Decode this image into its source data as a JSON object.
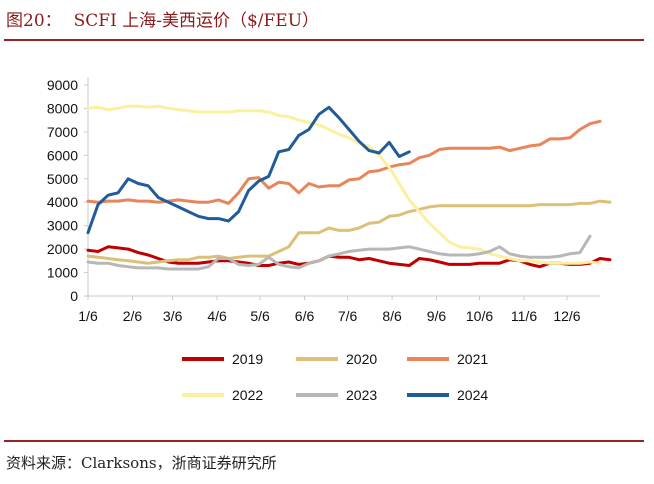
{
  "figure": {
    "label": "图20：",
    "title": "SCFI 上海-美西运价（$/FEU）",
    "source": "资料来源：Clarksons，浙商证券研究所"
  },
  "colors": {
    "title": "#8b1a1a",
    "rule": "#9b2222",
    "axis": "#c8c8c8"
  },
  "chart_data": {
    "type": "line",
    "title": "SCFI 上海-美西运价（$/FEU）",
    "xlabel": "",
    "ylabel": "",
    "ylim": [
      0,
      9000
    ],
    "yticks": [
      0,
      1000,
      2000,
      3000,
      4000,
      5000,
      6000,
      7000,
      8000,
      9000
    ],
    "xlim": [
      0,
      51
    ],
    "x_ticks": [
      {
        "label": "1/6",
        "x": 0
      },
      {
        "label": "2/6",
        "x": 4.43
      },
      {
        "label": "3/6",
        "x": 8.43
      },
      {
        "label": "4/6",
        "x": 12.86
      },
      {
        "label": "5/6",
        "x": 17.14
      },
      {
        "label": "6/6",
        "x": 21.57
      },
      {
        "label": "7/6",
        "x": 25.86
      },
      {
        "label": "8/6",
        "x": 30.29
      },
      {
        "label": "9/6",
        "x": 34.71
      },
      {
        "label": "10/6",
        "x": 39
      },
      {
        "label": "11/6",
        "x": 43.43
      },
      {
        "label": "12/6",
        "x": 47.71
      }
    ],
    "grid": false,
    "legend_position": "bottom",
    "series": [
      {
        "name": "2019",
        "color": "#c00000",
        "x_start": 0,
        "x_step": 1,
        "values": [
          1950,
          1900,
          2100,
          2050,
          2000,
          1850,
          1750,
          1600,
          1450,
          1400,
          1400,
          1400,
          1450,
          1500,
          1500,
          1450,
          1400,
          1300,
          1300,
          1400,
          1450,
          1350,
          1400,
          1500,
          1700,
          1650,
          1650,
          1550,
          1600,
          1500,
          1400,
          1350,
          1300,
          1600,
          1550,
          1450,
          1350,
          1350,
          1350,
          1400,
          1400,
          1400,
          1550,
          1500,
          1350,
          1250,
          1400,
          1400,
          1350,
          1350,
          1400,
          1600,
          1550
        ]
      },
      {
        "name": "2020",
        "color": "#dcc078",
        "x_start": 0,
        "x_step": 1,
        "values": [
          1700,
          1650,
          1600,
          1550,
          1500,
          1450,
          1400,
          1450,
          1500,
          1550,
          1550,
          1650,
          1650,
          1700,
          1600,
          1650,
          1700,
          1700,
          1700,
          1900,
          2100,
          2700,
          2700,
          2700,
          2900,
          2800,
          2800,
          2900,
          3100,
          3150,
          3400,
          3450,
          3600,
          3700,
          3800,
          3850,
          3850,
          3850,
          3850,
          3850,
          3850,
          3850,
          3850,
          3850,
          3850,
          3900,
          3900,
          3900,
          3900,
          3950,
          3950,
          4050,
          4000
        ]
      },
      {
        "name": "2021",
        "color": "#e8855a",
        "x_start": 0,
        "x_step": 1,
        "values": [
          4050,
          4000,
          4050,
          4050,
          4100,
          4050,
          4050,
          4000,
          4050,
          4100,
          4050,
          4000,
          4000,
          4100,
          3950,
          4400,
          5000,
          5050,
          4600,
          4850,
          4800,
          4400,
          4800,
          4650,
          4700,
          4700,
          4950,
          5000,
          5300,
          5350,
          5500,
          5600,
          5650,
          5900,
          6000,
          6250,
          6300,
          6300,
          6300,
          6300,
          6300,
          6350,
          6200,
          6300,
          6400,
          6450,
          6700,
          6700,
          6750,
          7100,
          7350,
          7450
        ]
      },
      {
        "name": "2022",
        "color": "#fbf0a0",
        "x_start": 0,
        "x_step": 1,
        "values": [
          8000,
          8050,
          7950,
          8000,
          8100,
          8100,
          8050,
          8100,
          8000,
          7950,
          7900,
          7850,
          7850,
          7850,
          7850,
          7900,
          7900,
          7900,
          7850,
          7700,
          7650,
          7500,
          7400,
          7300,
          7100,
          6900,
          6750,
          6500,
          6400,
          6000,
          5500,
          4800,
          4100,
          3600,
          3100,
          2700,
          2300,
          2100,
          2050,
          2000,
          1800,
          1700,
          1600,
          1500,
          1500,
          1450,
          1400,
          1400,
          1400,
          1400,
          1450,
          1400
        ]
      },
      {
        "name": "2023",
        "color": "#b7b7b7",
        "x_start": 0,
        "x_step": 1,
        "values": [
          1450,
          1400,
          1400,
          1300,
          1250,
          1200,
          1200,
          1200,
          1150,
          1150,
          1150,
          1150,
          1250,
          1600,
          1600,
          1350,
          1300,
          1350,
          1650,
          1350,
          1250,
          1200,
          1400,
          1500,
          1700,
          1800,
          1900,
          1950,
          2000,
          2000,
          2000,
          2050,
          2100,
          2000,
          1900,
          1800,
          1750,
          1750,
          1750,
          1800,
          1900,
          2100,
          1800,
          1700,
          1650,
          1650,
          1650,
          1700,
          1800,
          1850,
          2550
        ]
      },
      {
        "name": "2024",
        "color": "#1f5c99",
        "x_start": 0,
        "x_step": 1,
        "values": [
          2700,
          3900,
          4300,
          4400,
          5000,
          4800,
          4700,
          4200,
          4000,
          3800,
          3600,
          3400,
          3300,
          3300,
          3200,
          3600,
          4500,
          4900,
          5100,
          6150,
          6250,
          6850,
          7100,
          7750,
          8050,
          7600,
          7100,
          6600,
          6200,
          6100,
          6550,
          5950,
          6150
        ]
      }
    ]
  }
}
